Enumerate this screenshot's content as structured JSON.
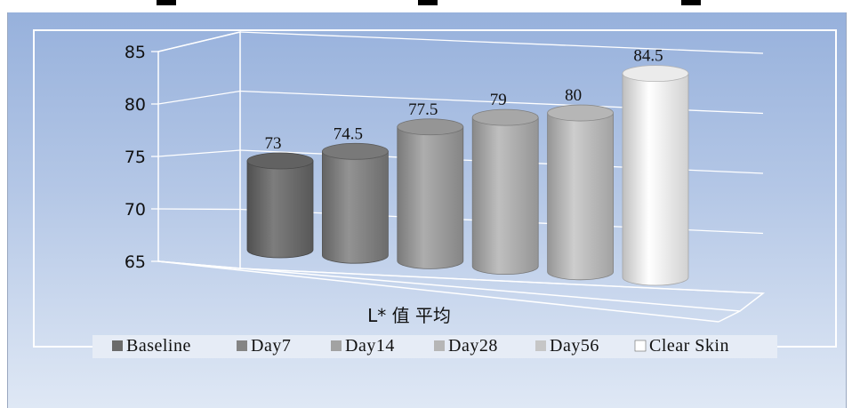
{
  "chart_data": {
    "type": "bar",
    "style": "3d-cylinder",
    "categories": [
      "Baseline",
      "Day7",
      "Day14",
      "Day28",
      "Day56",
      "Clear Skin"
    ],
    "values": [
      73,
      74.5,
      77.5,
      79,
      80,
      84.5
    ],
    "data_labels": [
      "73",
      "74.5",
      "77.5",
      "79",
      "80",
      "84.5"
    ],
    "colors": [
      "#6b6b6b",
      "#848484",
      "#a2a2a2",
      "#b6b6b6",
      "#c6c6c6",
      "#ffffff"
    ],
    "xlabel": "L* 值 平均",
    "ylim": [
      65,
      85
    ],
    "y_ticks": [
      "65",
      "70",
      "75",
      "80",
      "85"
    ],
    "grid": true,
    "legend_position": "bottom",
    "background": "#a9bfe4"
  }
}
